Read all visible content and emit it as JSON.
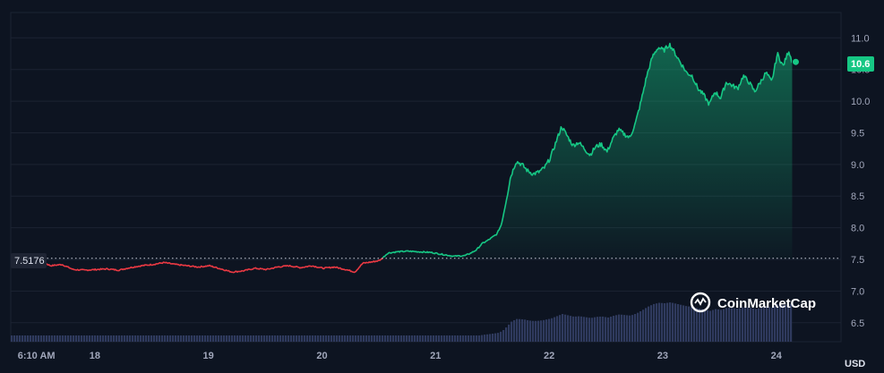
{
  "chart_data": {
    "type": "line",
    "title": "",
    "xlabel": "",
    "ylabel": "",
    "currency_label": "USD",
    "reference_price": "7.5176",
    "current_price": "10.6",
    "watermark": "CoinMarketCap",
    "ylim": [
      6.2,
      11.4
    ],
    "y_ticks": [
      "6.5",
      "7.0",
      "7.5",
      "8.0",
      "8.5",
      "9.0",
      "9.5",
      "10.0",
      "10.5",
      "11.0"
    ],
    "x_ticks": [
      {
        "label": "6:10 AM",
        "day": 17.0
      },
      {
        "label": "18",
        "day": 17.64
      },
      {
        "label": "19",
        "day": 18.64
      },
      {
        "label": "20",
        "day": 19.64
      },
      {
        "label": "21",
        "day": 20.64
      },
      {
        "label": "22",
        "day": 21.64
      },
      {
        "label": "23",
        "day": 22.64
      },
      {
        "label": "24",
        "day": 23.64
      }
    ],
    "x_range": [
      16.9,
      24.21
    ],
    "colors": {
      "up": "#16c784",
      "down": "#ea3943",
      "volume": "#2f3a5e",
      "grid": "#1c2332",
      "background": "#0d1421"
    },
    "series": [
      {
        "values": [
          [
            16.92,
            7.5
          ],
          [
            17.0,
            7.49
          ],
          [
            17.1,
            7.5
          ],
          [
            17.18,
            7.46
          ],
          [
            17.25,
            7.4
          ],
          [
            17.35,
            7.42
          ],
          [
            17.45,
            7.34
          ],
          [
            17.55,
            7.33
          ],
          [
            17.65,
            7.34
          ],
          [
            17.75,
            7.35
          ],
          [
            17.85,
            7.33
          ],
          [
            17.95,
            7.37
          ],
          [
            18.05,
            7.4
          ],
          [
            18.15,
            7.42
          ],
          [
            18.25,
            7.45
          ],
          [
            18.35,
            7.42
          ],
          [
            18.45,
            7.4
          ],
          [
            18.55,
            7.38
          ],
          [
            18.65,
            7.4
          ],
          [
            18.75,
            7.35
          ],
          [
            18.85,
            7.3
          ],
          [
            18.95,
            7.32
          ],
          [
            19.05,
            7.36
          ],
          [
            19.15,
            7.34
          ],
          [
            19.25,
            7.38
          ],
          [
            19.35,
            7.4
          ],
          [
            19.45,
            7.37
          ],
          [
            19.55,
            7.4
          ],
          [
            19.65,
            7.36
          ],
          [
            19.75,
            7.38
          ],
          [
            19.85,
            7.34
          ],
          [
            19.93,
            7.3
          ],
          [
            20.0,
            7.44
          ],
          [
            20.08,
            7.46
          ],
          [
            20.14,
            7.48
          ],
          [
            20.16,
            7.5
          ],
          [
            20.22,
            7.6
          ],
          [
            20.3,
            7.62
          ],
          [
            20.4,
            7.63
          ],
          [
            20.5,
            7.62
          ],
          [
            20.6,
            7.61
          ],
          [
            20.7,
            7.58
          ],
          [
            20.8,
            7.55
          ],
          [
            20.9,
            7.56
          ],
          [
            20.95,
            7.6
          ],
          [
            21.0,
            7.65
          ],
          [
            21.05,
            7.75
          ],
          [
            21.1,
            7.8
          ],
          [
            21.18,
            7.9
          ],
          [
            21.22,
            8.05
          ],
          [
            21.26,
            8.4
          ],
          [
            21.3,
            8.8
          ],
          [
            21.35,
            9.05
          ],
          [
            21.4,
            9.0
          ],
          [
            21.45,
            8.9
          ],
          [
            21.5,
            8.85
          ],
          [
            21.55,
            8.88
          ],
          [
            21.6,
            8.95
          ],
          [
            21.65,
            9.1
          ],
          [
            21.7,
            9.35
          ],
          [
            21.75,
            9.6
          ],
          [
            21.8,
            9.45
          ],
          [
            21.85,
            9.3
          ],
          [
            21.9,
            9.35
          ],
          [
            21.95,
            9.25
          ],
          [
            22.0,
            9.15
          ],
          [
            22.05,
            9.28
          ],
          [
            22.1,
            9.32
          ],
          [
            22.15,
            9.2
          ],
          [
            22.2,
            9.4
          ],
          [
            22.25,
            9.55
          ],
          [
            22.3,
            9.48
          ],
          [
            22.35,
            9.42
          ],
          [
            22.4,
            9.65
          ],
          [
            22.45,
            10.0
          ],
          [
            22.5,
            10.4
          ],
          [
            22.55,
            10.7
          ],
          [
            22.6,
            10.85
          ],
          [
            22.65,
            10.8
          ],
          [
            22.7,
            10.9
          ],
          [
            22.75,
            10.75
          ],
          [
            22.8,
            10.6
          ],
          [
            22.85,
            10.45
          ],
          [
            22.9,
            10.4
          ],
          [
            22.95,
            10.2
          ],
          [
            23.0,
            10.1
          ],
          [
            23.05,
            9.95
          ],
          [
            23.1,
            10.15
          ],
          [
            23.15,
            10.05
          ],
          [
            23.2,
            10.3
          ],
          [
            23.25,
            10.25
          ],
          [
            23.3,
            10.2
          ],
          [
            23.35,
            10.4
          ],
          [
            23.4,
            10.3
          ],
          [
            23.45,
            10.15
          ],
          [
            23.5,
            10.3
          ],
          [
            23.55,
            10.45
          ],
          [
            23.6,
            10.3
          ],
          [
            23.65,
            10.75
          ],
          [
            23.7,
            10.55
          ],
          [
            23.75,
            10.8
          ],
          [
            23.78,
            10.62
          ]
        ]
      }
    ]
  }
}
